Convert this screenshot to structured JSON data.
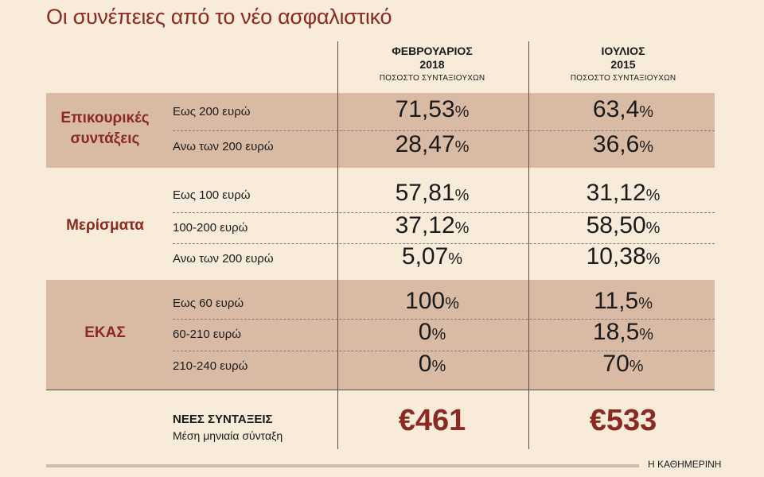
{
  "title": "Οι συνέπειες από το νέο ασφαλιστικό",
  "columns": [
    {
      "line1": "ΦΕΒΡΟΥΑΡΙΟΣ",
      "line2": "2018",
      "sub": "ΠΟΣΟΣΤΟ ΣΥΝΤΑΞΙΟΥΧΩΝ"
    },
    {
      "line1": "ΙΟΥΛΙΟΣ",
      "line2": "2015",
      "sub": "ΠΟΣΟΣΤΟ ΣΥΝΤΑΞΙΟΥΧΩΝ"
    }
  ],
  "percent_sign": "%",
  "new_pensions": {
    "label": "ΝΕΕΣ ΣΥΝΤΑΞΕΙΣ",
    "sublabel": "Μέση μηνιαία σύνταξη",
    "values": [
      "€461",
      "€533"
    ]
  },
  "source": "Η ΚΑΘΗΜΕΡΙΝΗ",
  "colors": {
    "accent": "#8b2a22",
    "band": "#d9bba5",
    "background": "#f9ebd9"
  },
  "chart_data": {
    "type": "table",
    "groups": [
      {
        "name": "Επικουρικές συντάξεις",
        "rows": [
          {
            "label": "Εως 200 ευρώ",
            "v2018": "71,53",
            "v2015": "63,4"
          },
          {
            "label": "Ανω των 200 ευρώ",
            "v2018": "28,47",
            "v2015": "36,6"
          }
        ]
      },
      {
        "name": "Μερίσματα",
        "rows": [
          {
            "label": "Εως 100 ευρώ",
            "v2018": "57,81",
            "v2015": "31,12"
          },
          {
            "label": "100-200 ευρώ",
            "v2018": "37,12",
            "v2015": "58,50"
          },
          {
            "label": "Ανω των 200 ευρώ",
            "v2018": "5,07",
            "v2015": "10,38"
          }
        ]
      },
      {
        "name": "ΕΚΑΣ",
        "rows": [
          {
            "label": "Εως 60 ευρώ",
            "v2018": "100",
            "v2015": "11,5"
          },
          {
            "label": "60-210 ευρώ",
            "v2018": "0",
            "v2015": "18,5"
          },
          {
            "label": "210-240 ευρώ",
            "v2018": "0",
            "v2015": "70"
          }
        ]
      }
    ]
  }
}
